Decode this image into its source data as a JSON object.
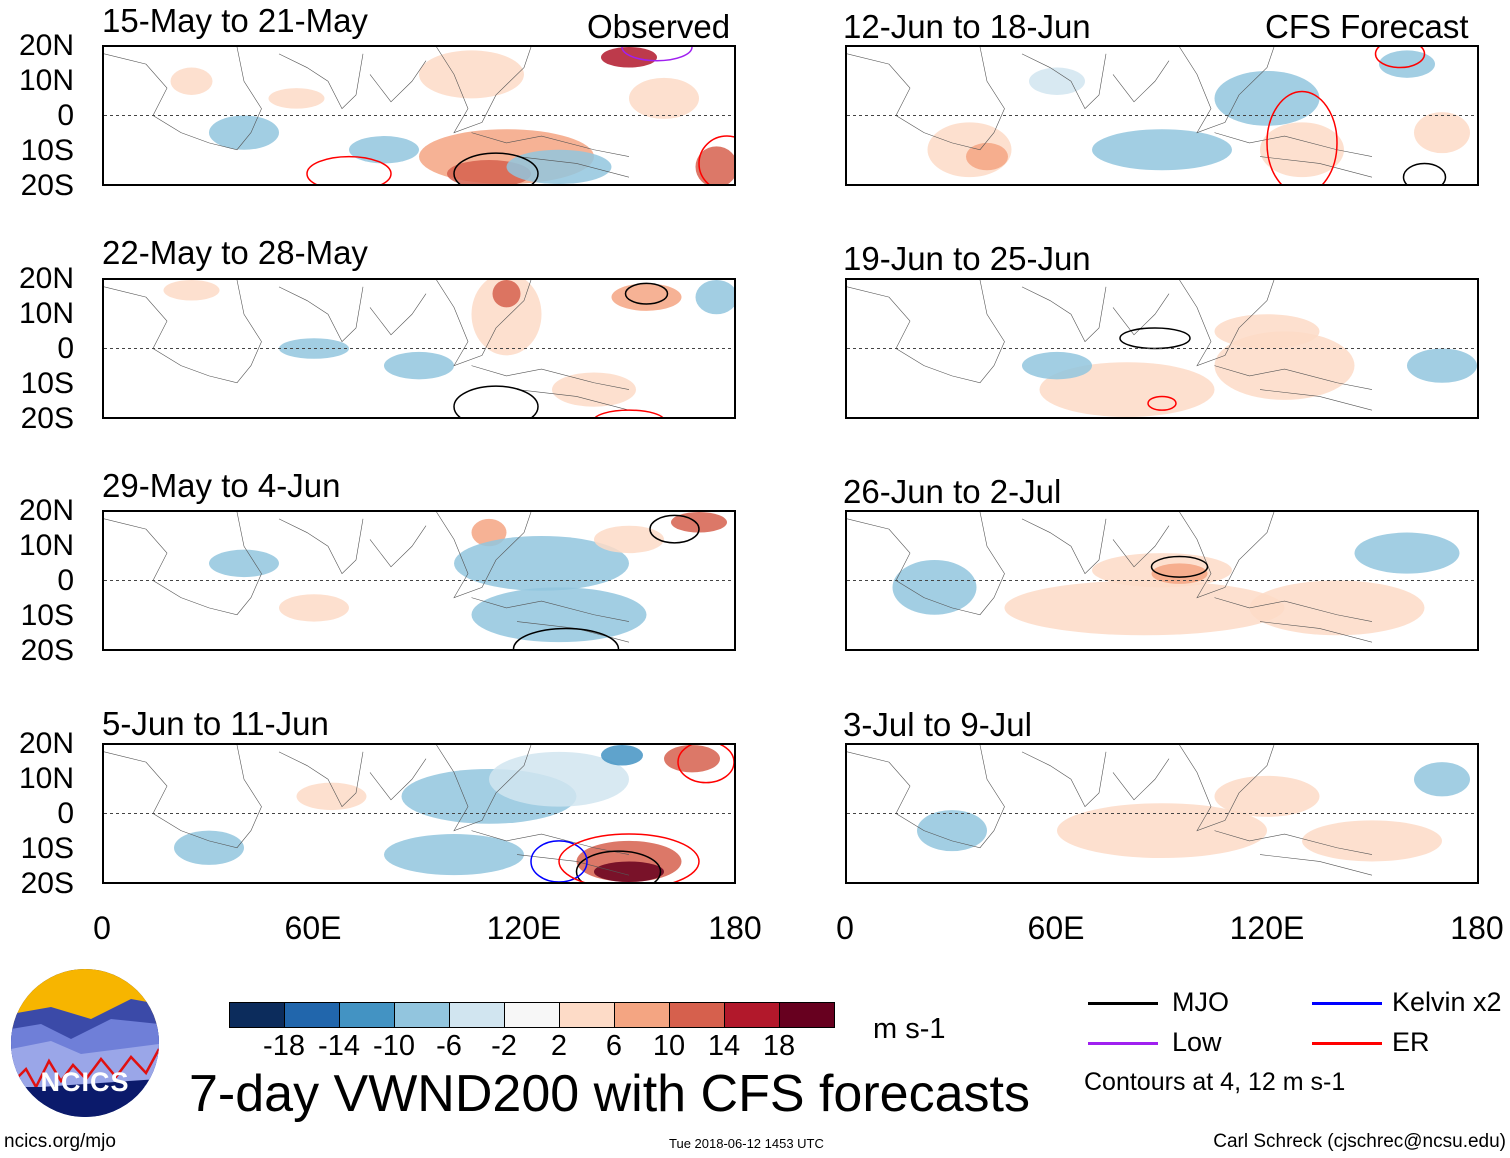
{
  "observed_label": "Observed",
  "forecast_label": "CFS Forecast",
  "observed_panels": [
    {
      "title": "15-May to 21-May"
    },
    {
      "title": "22-May to 28-May"
    },
    {
      "title": "29-May to 4-Jun"
    },
    {
      "title": "5-Jun to 11-Jun"
    }
  ],
  "forecast_panels": [
    {
      "title": "12-Jun to 18-Jun"
    },
    {
      "title": "19-Jun to 25-Jun"
    },
    {
      "title": "26-Jun to 2-Jul"
    },
    {
      "title": "3-Jul to 9-Jul"
    }
  ],
  "lat_labels": [
    "20N",
    "10N",
    "0",
    "10S",
    "20S"
  ],
  "lon_labels": [
    "0",
    "60E",
    "120E",
    "180"
  ],
  "colorbar": {
    "labels": [
      "-18",
      "-14",
      "-10",
      "-6",
      "-2",
      "2",
      "6",
      "10",
      "14",
      "18"
    ],
    "colors": [
      "#0c2c5c",
      "#2166ac",
      "#4393c3",
      "#92c5de",
      "#d1e5f0",
      "#f7f7f7",
      "#fddbc7",
      "#f4a582",
      "#d6604d",
      "#b2182b",
      "#67001f"
    ],
    "units": "m s-1"
  },
  "title": "7-day VWND200 with CFS forecasts",
  "legend": {
    "items": [
      {
        "label": "MJO",
        "color": "#000000"
      },
      {
        "label": "Kelvin x2",
        "color": "#0000ff"
      },
      {
        "label": "Low",
        "color": "#a020f0"
      },
      {
        "label": "ER",
        "color": "#ff0000"
      }
    ],
    "note": "Contours at 4, 12 m s-1"
  },
  "logo_text": "NCICS",
  "footer": {
    "url": "ncics.org/mjo",
    "timestamp": "Tue 2018-06-12 1453 UTC",
    "credit": "Carl Schreck (cjschrec@ncsu.edu)"
  }
}
